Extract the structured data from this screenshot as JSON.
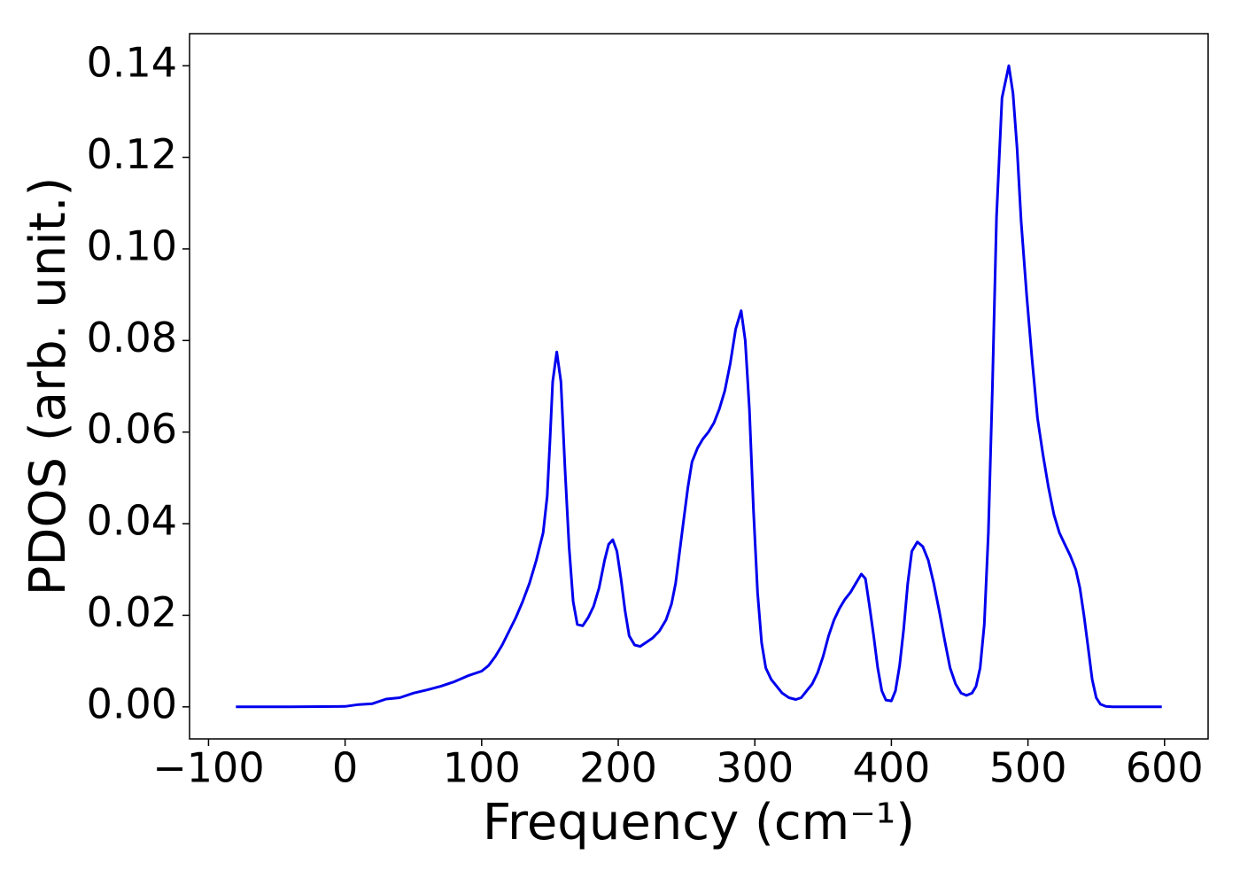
{
  "chart_data": {
    "type": "line",
    "xlabel": "Frequency (cm⁻¹)",
    "ylabel": "PDOS (arb. unit.)",
    "x": [
      -80,
      -40,
      0,
      10,
      20,
      30,
      40,
      50,
      60,
      70,
      80,
      90,
      100,
      105,
      110,
      115,
      120,
      125,
      130,
      135,
      140,
      145,
      148,
      150,
      152,
      155,
      158,
      161,
      164,
      167,
      170,
      174,
      178,
      182,
      186,
      190,
      193,
      196,
      199,
      202,
      205,
      208,
      212,
      216,
      220,
      225,
      230,
      235,
      239,
      242,
      245,
      248,
      251,
      254,
      258,
      262,
      266,
      270,
      274,
      278,
      282,
      286,
      290,
      293,
      296,
      299,
      302,
      305,
      308,
      312,
      316,
      320,
      325,
      330,
      334,
      338,
      342,
      346,
      350,
      354,
      358,
      362,
      366,
      370,
      374,
      378,
      381,
      384,
      387,
      390,
      393,
      396,
      400,
      403,
      406,
      409,
      412,
      415,
      419,
      423,
      427,
      431,
      435,
      439,
      443,
      447,
      451,
      455,
      459,
      462,
      465,
      468,
      471,
      474,
      477,
      481,
      486,
      489,
      492,
      495,
      499,
      503,
      507,
      511,
      515,
      519,
      523,
      527,
      531,
      535,
      538,
      541,
      544,
      547,
      550,
      553,
      557,
      562,
      598
    ],
    "series": [
      {
        "name": "PDOS",
        "color": "#0000ee",
        "values": [
          0,
          0,
          0.0001,
          0.0005,
          0.0007,
          0.0017,
          0.002,
          0.003,
          0.0037,
          0.0045,
          0.0055,
          0.0068,
          0.0078,
          0.009,
          0.011,
          0.0135,
          0.0165,
          0.0195,
          0.023,
          0.027,
          0.032,
          0.038,
          0.046,
          0.058,
          0.071,
          0.0775,
          0.071,
          0.052,
          0.035,
          0.023,
          0.018,
          0.0177,
          0.0195,
          0.022,
          0.026,
          0.032,
          0.0355,
          0.0365,
          0.034,
          0.028,
          0.021,
          0.0155,
          0.0135,
          0.0132,
          0.014,
          0.015,
          0.0165,
          0.019,
          0.0225,
          0.027,
          0.034,
          0.041,
          0.048,
          0.0535,
          0.0565,
          0.0585,
          0.06,
          0.062,
          0.065,
          0.069,
          0.075,
          0.0825,
          0.0865,
          0.08,
          0.065,
          0.043,
          0.025,
          0.014,
          0.0085,
          0.006,
          0.0045,
          0.003,
          0.002,
          0.0016,
          0.002,
          0.0035,
          0.005,
          0.0075,
          0.011,
          0.0155,
          0.019,
          0.0215,
          0.0235,
          0.025,
          0.027,
          0.029,
          0.028,
          0.022,
          0.0155,
          0.0085,
          0.0035,
          0.0015,
          0.0013,
          0.0035,
          0.009,
          0.017,
          0.027,
          0.034,
          0.036,
          0.035,
          0.032,
          0.027,
          0.021,
          0.0145,
          0.0085,
          0.005,
          0.003,
          0.0025,
          0.003,
          0.0045,
          0.0085,
          0.018,
          0.038,
          0.07,
          0.107,
          0.133,
          0.14,
          0.134,
          0.122,
          0.106,
          0.09,
          0.076,
          0.063,
          0.055,
          0.048,
          0.042,
          0.038,
          0.0355,
          0.033,
          0.03,
          0.026,
          0.02,
          0.013,
          0.006,
          0.002,
          0.0006,
          0.0001,
          0,
          0
        ]
      }
    ],
    "xlim": [
      -113.9,
      631.9
    ],
    "ylim": [
      -0.007,
      0.147
    ],
    "xticks": [
      {
        "value": -100,
        "label": "−100"
      },
      0,
      100,
      200,
      300,
      400,
      500,
      600
    ],
    "yticks": [
      {
        "value": 0,
        "label": "0.00"
      },
      {
        "value": 0.02,
        "label": "0.02"
      },
      {
        "value": 0.04,
        "label": "0.04"
      },
      {
        "value": 0.06,
        "label": "0.06"
      },
      {
        "value": 0.08,
        "label": "0.08"
      },
      {
        "value": 0.1,
        "label": "0.10"
      },
      {
        "value": 0.12,
        "label": "0.12"
      },
      {
        "value": 0.14,
        "label": "0.14"
      }
    ]
  }
}
